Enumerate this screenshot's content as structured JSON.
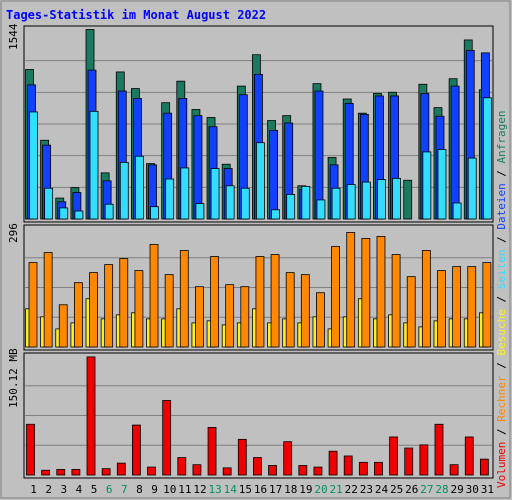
{
  "title": "Tages-Statistik im Monat August 2022",
  "colors": {
    "background": "#c0c0c0",
    "title": "#0000ff",
    "weekday_label": "#000000",
    "weekend_label": "#009060",
    "anfragen": "#1a7a60",
    "dateien": "#1240ff",
    "seiten": "#33ddff",
    "besuche": "#ffee22",
    "rechner": "#ff8800",
    "volumen": "#ee0000",
    "grid": "#808080"
  },
  "chart_data": [
    {
      "type": "bar",
      "panel": "top",
      "ytick_label": "1544",
      "ylim": [
        0,
        1544
      ],
      "categories": [
        "1",
        "2",
        "3",
        "4",
        "5",
        "6",
        "7",
        "8",
        "9",
        "10",
        "11",
        "12",
        "13",
        "14",
        "15",
        "16",
        "17",
        "18",
        "19",
        "20",
        "21",
        "22",
        "23",
        "24",
        "25",
        "26",
        "27",
        "28",
        "29",
        "30",
        "31"
      ],
      "weekend_days": [
        "6",
        "7",
        "13",
        "14",
        "20",
        "21",
        "27",
        "28"
      ],
      "series": [
        {
          "name": "Anfragen",
          "values": [
            1215,
            640,
            170,
            255,
            1540,
            375,
            1195,
            1060,
            450,
            945,
            1120,
            890,
            825,
            445,
            1080,
            1335,
            800,
            840,
            270,
            1100,
            500,
            975,
            860,
            1020,
            1030,
            315,
            1095,
            905,
            1140,
            1455,
            1050
          ]
        },
        {
          "name": "Dateien",
          "values": [
            1090,
            600,
            140,
            215,
            1210,
            310,
            1040,
            980,
            440,
            860,
            980,
            840,
            750,
            410,
            1010,
            1175,
            720,
            780,
            240,
            1040,
            440,
            940,
            850,
            1000,
            1000,
            0,
            1020,
            835,
            1080,
            1370,
            1350
          ]
        },
        {
          "name": "Seiten",
          "values": [
            870,
            250,
            90,
            65,
            875,
            120,
            460,
            510,
            100,
            325,
            415,
            125,
            410,
            270,
            250,
            620,
            75,
            200,
            265,
            155,
            250,
            280,
            300,
            320,
            330,
            0,
            545,
            565,
            130,
            495,
            985
          ]
        }
      ]
    },
    {
      "type": "bar",
      "panel": "middle",
      "ytick_label": "296",
      "ylim": [
        0,
        296
      ],
      "categories": [
        "1",
        "2",
        "3",
        "4",
        "5",
        "6",
        "7",
        "8",
        "9",
        "10",
        "11",
        "12",
        "13",
        "14",
        "15",
        "16",
        "17",
        "18",
        "19",
        "20",
        "21",
        "22",
        "23",
        "24",
        "25",
        "26",
        "27",
        "28",
        "29",
        "30",
        "31"
      ],
      "series": [
        {
          "name": "Besuche",
          "values": [
            95,
            75,
            45,
            60,
            120,
            70,
            80,
            85,
            70,
            70,
            95,
            60,
            65,
            55,
            60,
            95,
            60,
            70,
            60,
            75,
            45,
            75,
            120,
            70,
            80,
            60,
            50,
            65,
            70,
            70,
            85
          ]
        },
        {
          "name": "Rechner",
          "values": [
            210,
            235,
            105,
            160,
            185,
            205,
            220,
            190,
            255,
            180,
            240,
            150,
            225,
            155,
            150,
            225,
            230,
            185,
            180,
            135,
            250,
            285,
            270,
            275,
            230,
            175,
            240,
            190,
            200,
            200,
            210
          ]
        }
      ]
    },
    {
      "type": "bar",
      "panel": "bottom",
      "ytick_label": "150.12 MB",
      "ylim": [
        0,
        150.12
      ],
      "categories": [
        "1",
        "2",
        "3",
        "4",
        "5",
        "6",
        "7",
        "8",
        "9",
        "10",
        "11",
        "12",
        "13",
        "14",
        "15",
        "16",
        "17",
        "18",
        "19",
        "20",
        "21",
        "22",
        "23",
        "24",
        "25",
        "26",
        "27",
        "28",
        "29",
        "30",
        "31"
      ],
      "series": [
        {
          "name": "Volumen",
          "values": [
            64,
            6,
            7,
            7,
            149,
            8,
            15,
            63,
            10,
            94,
            22,
            13,
            60,
            9,
            45,
            22,
            12,
            42,
            12,
            10,
            30,
            24,
            16,
            16,
            48,
            34,
            38,
            64,
            13,
            48,
            20
          ]
        }
      ]
    }
  ],
  "legend": {
    "anfragen": "Anfragen",
    "dateien": "Dateien",
    "seiten": "Seiten",
    "besuche": "Besuche",
    "rechner": "Rechner",
    "volumen": "Volumen",
    "separator": " / "
  }
}
